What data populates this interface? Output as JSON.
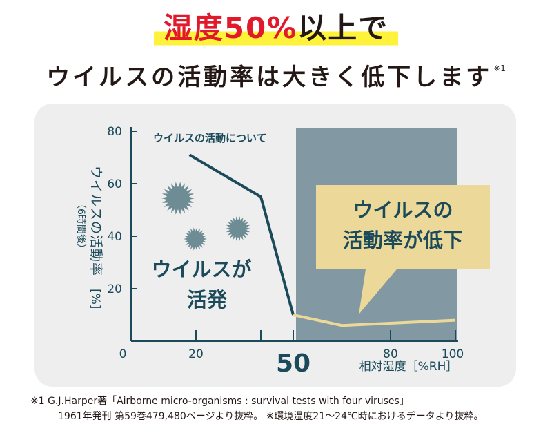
{
  "headline": {
    "line1_red": "湿度50%",
    "line1_rest": "以上で",
    "line2": "ウイルスの活動率は大きく低下します",
    "line2_note": "※1"
  },
  "colors": {
    "accent_red": "#e2192a",
    "highlight_yellow": "#fff23a",
    "virus_teal": "#6e8c93",
    "line_dark": "#1b4a5a",
    "low_region": "#8299a4",
    "callout": "#ecd898"
  },
  "chart_data": {
    "type": "line",
    "title": "ウイルスの活動について",
    "ylabel": "ウイルスの活動率",
    "ylabel_sub": "（6時間後）",
    "ylabel_unit": "[%]",
    "xlabel": "相対湿度［%RH］",
    "xlim": [
      0,
      100
    ],
    "ylim": [
      0,
      80
    ],
    "x_ticks": [
      "0",
      "20",
      "50",
      "80",
      "100"
    ],
    "x_tick_values": [
      0,
      20,
      50,
      80,
      100
    ],
    "y_ticks": [
      "20",
      "40",
      "60",
      "80"
    ],
    "y_tick_values": [
      20,
      40,
      60,
      80
    ],
    "highlight_region": [
      50,
      100
    ],
    "series": [
      {
        "segment": "high-activity",
        "x": [
          18,
          40,
          50
        ],
        "y": [
          71,
          55,
          10
        ]
      },
      {
        "segment": "low-activity",
        "x": [
          50,
          65,
          100
        ],
        "y": [
          10,
          6,
          8
        ]
      }
    ],
    "annotations": {
      "left_label": [
        "ウイルスが",
        "活発"
      ],
      "callout": [
        "ウイルスの",
        "活動率が低下"
      ]
    }
  },
  "footnote": {
    "line1": "※1 G.J.Harper著「Airborne micro-organisms : survival tests with four viruses」",
    "line2": "1961年発刊 第59巻479,480ページより抜粋。 ※環境温度21～24℃時におけるデータより抜粋。"
  }
}
